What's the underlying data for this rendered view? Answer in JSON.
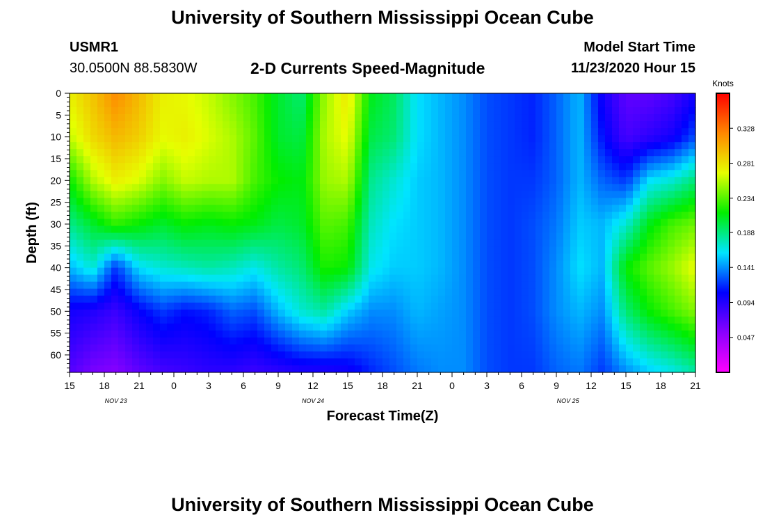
{
  "header": {
    "title": "University of Southern Mississippi Ocean Cube",
    "station": "USMR1",
    "coords": "30.0500N 88.5830W",
    "plot_title": "2-D Currents Speed-Magnitude",
    "model_start_label": "Model Start Time",
    "model_start_value": "11/23/2020 Hour 15"
  },
  "footer": {
    "title": "University of Southern Mississippi Ocean Cube"
  },
  "colors": {
    "scale": [
      "#ff00ff",
      "#8a00ff",
      "#0000ff",
      "#00e5ff",
      "#00ee00",
      "#e6ff00",
      "#ff8800",
      "#ff0000"
    ]
  },
  "chart_data": {
    "type": "heatmap",
    "title": "2-D Currents Speed-Magnitude",
    "xlabel": "Forecast Time(Z)",
    "ylabel": "Depth (ft)",
    "x_ticks": [
      "15",
      "18",
      "21",
      "0",
      "3",
      "6",
      "9",
      "12",
      "15",
      "18",
      "21",
      "0",
      "3",
      "6",
      "9",
      "12",
      "15",
      "18",
      "21"
    ],
    "x_hours": [
      0,
      54
    ],
    "date_labels": [
      {
        "text": "NOV  23",
        "hour": 4
      },
      {
        "text": "NOV  24",
        "hour": 21
      },
      {
        "text": "NOV  25",
        "hour": 43
      }
    ],
    "y_ticks": [
      "0",
      "5",
      "10",
      "15",
      "20",
      "25",
      "30",
      "35",
      "40",
      "45",
      "50",
      "55",
      "60"
    ],
    "ylim": [
      0,
      64
    ],
    "colorbar": {
      "label": "Knots",
      "ticks": [
        "0.328",
        "0.281",
        "0.234",
        "0.188",
        "0.141",
        "0.094",
        "0.047"
      ],
      "tick_values": [
        0.328,
        0.281,
        0.234,
        0.188,
        0.141,
        0.094,
        0.047
      ],
      "range": [
        0.0,
        0.375
      ]
    },
    "depth_levels": [
      0,
      10,
      20,
      30,
      40,
      50,
      64
    ],
    "hours": [
      0,
      2,
      4,
      6,
      8,
      10,
      12,
      14,
      16,
      18,
      20,
      22,
      24,
      26,
      28,
      30,
      32,
      34,
      36,
      38,
      40,
      42,
      44,
      46,
      48,
      50,
      52,
      54
    ],
    "speed_knots": [
      [
        0.275,
        0.295,
        0.32,
        0.3,
        0.275,
        0.27,
        0.26,
        0.245,
        0.23,
        0.205,
        0.19,
        0.25,
        0.28,
        0.21,
        0.195,
        0.16,
        0.15,
        0.14,
        0.125,
        0.12,
        0.115,
        0.13,
        0.15,
        0.1,
        0.07,
        0.07,
        0.08,
        0.1
      ],
      [
        0.26,
        0.285,
        0.3,
        0.29,
        0.27,
        0.275,
        0.265,
        0.255,
        0.235,
        0.205,
        0.2,
        0.255,
        0.27,
        0.2,
        0.19,
        0.16,
        0.15,
        0.14,
        0.125,
        0.12,
        0.115,
        0.13,
        0.15,
        0.11,
        0.08,
        0.09,
        0.1,
        0.125
      ],
      [
        0.215,
        0.255,
        0.275,
        0.265,
        0.245,
        0.26,
        0.255,
        0.255,
        0.23,
        0.215,
        0.21,
        0.25,
        0.255,
        0.185,
        0.17,
        0.155,
        0.15,
        0.14,
        0.125,
        0.12,
        0.12,
        0.13,
        0.15,
        0.13,
        0.12,
        0.16,
        0.17,
        0.19
      ],
      [
        0.185,
        0.205,
        0.225,
        0.215,
        0.205,
        0.215,
        0.21,
        0.215,
        0.21,
        0.2,
        0.205,
        0.235,
        0.23,
        0.175,
        0.16,
        0.155,
        0.15,
        0.14,
        0.125,
        0.12,
        0.125,
        0.135,
        0.155,
        0.15,
        0.17,
        0.21,
        0.23,
        0.24
      ],
      [
        0.15,
        0.17,
        0.12,
        0.16,
        0.17,
        0.175,
        0.18,
        0.175,
        0.165,
        0.18,
        0.19,
        0.22,
        0.215,
        0.165,
        0.155,
        0.155,
        0.15,
        0.14,
        0.125,
        0.12,
        0.125,
        0.14,
        0.16,
        0.15,
        0.215,
        0.235,
        0.25,
        0.27
      ],
      [
        0.1,
        0.095,
        0.085,
        0.105,
        0.12,
        0.11,
        0.115,
        0.13,
        0.125,
        0.15,
        0.17,
        0.18,
        0.155,
        0.14,
        0.14,
        0.15,
        0.145,
        0.14,
        0.125,
        0.12,
        0.125,
        0.14,
        0.15,
        0.14,
        0.19,
        0.215,
        0.23,
        0.245
      ],
      [
        0.075,
        0.06,
        0.055,
        0.07,
        0.08,
        0.085,
        0.09,
        0.09,
        0.085,
        0.09,
        0.095,
        0.095,
        0.1,
        0.115,
        0.125,
        0.135,
        0.14,
        0.14,
        0.125,
        0.12,
        0.12,
        0.13,
        0.135,
        0.12,
        0.14,
        0.155,
        0.165,
        0.18
      ]
    ]
  }
}
